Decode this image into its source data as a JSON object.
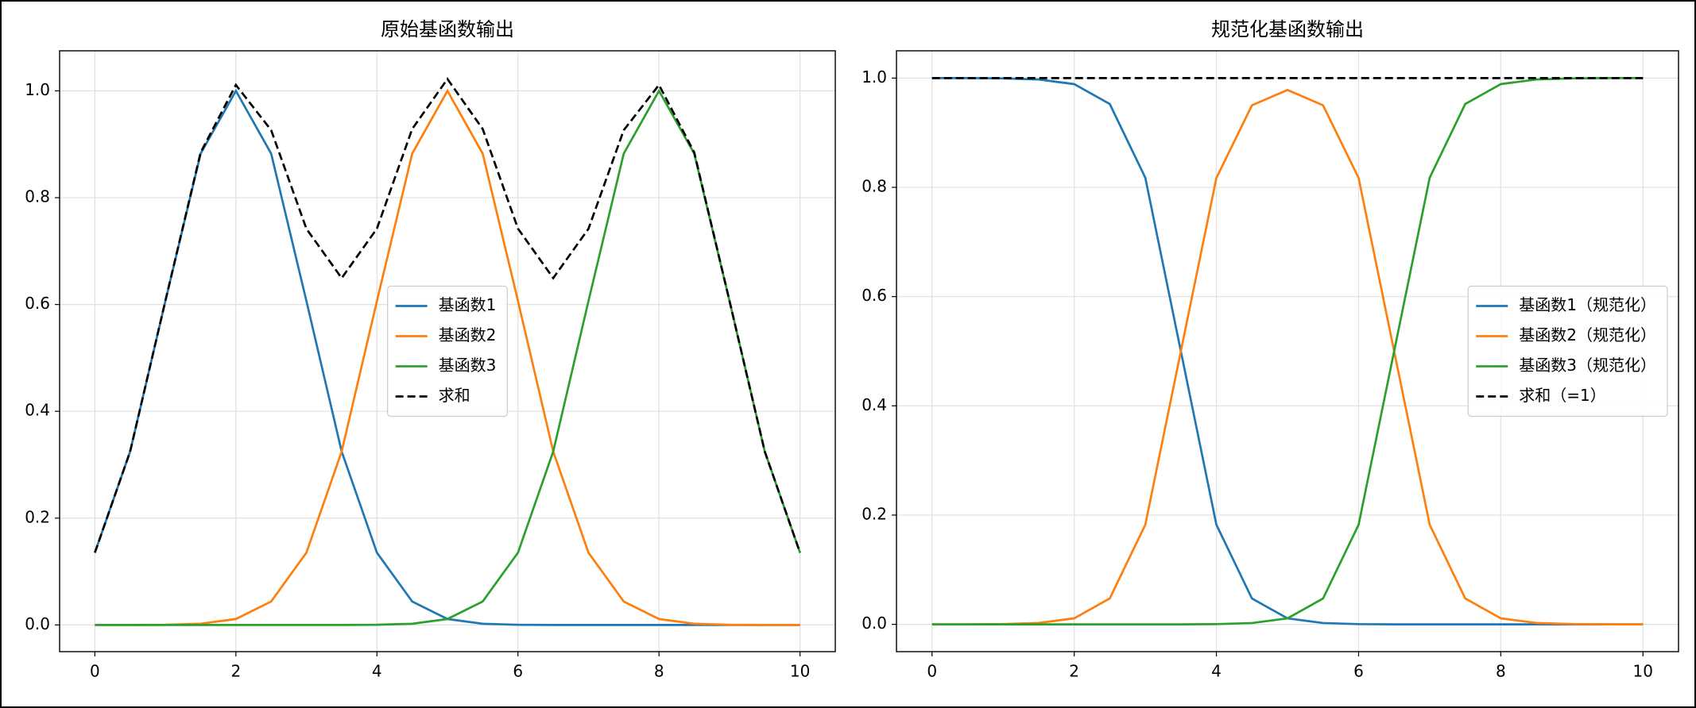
{
  "chart_data": [
    {
      "type": "line",
      "title": "原始基函数输出",
      "x": [
        0,
        0.5,
        1,
        1.5,
        2,
        2.5,
        3,
        3.5,
        4,
        4.5,
        5,
        5.5,
        6,
        6.5,
        7,
        7.5,
        8,
        8.5,
        9,
        9.5,
        10
      ],
      "series": [
        {
          "name": "基函数1",
          "color": "#1f77b4",
          "linestyle": "solid",
          "values": [
            0.1353,
            0.3247,
            0.6065,
            0.8825,
            1,
            0.8825,
            0.6065,
            0.3247,
            0.1353,
            0.0439,
            0.0111,
            0.0022,
            0.0003,
            0,
            0,
            0,
            0,
            0,
            0,
            0,
            0
          ]
        },
        {
          "name": "基函数2",
          "color": "#ff7f0e",
          "linestyle": "solid",
          "values": [
            0,
            0,
            0.0003,
            0.0022,
            0.0111,
            0.0439,
            0.1353,
            0.3247,
            0.6065,
            0.8825,
            1,
            0.8825,
            0.6065,
            0.3247,
            0.1353,
            0.0439,
            0.0111,
            0.0022,
            0.0003,
            0,
            0
          ]
        },
        {
          "name": "基函数3",
          "color": "#2ca02c",
          "linestyle": "solid",
          "values": [
            0,
            0,
            0,
            0,
            0,
            0,
            0,
            0,
            0.0003,
            0.0022,
            0.0111,
            0.0439,
            0.1353,
            0.3247,
            0.6065,
            0.8825,
            1,
            0.8825,
            0.6065,
            0.3247,
            0.1353
          ]
        },
        {
          "name": "求和",
          "color": "#000000",
          "linestyle": "dashed",
          "values": [
            0.1353,
            0.3247,
            0.6068,
            0.8847,
            1.0111,
            0.9264,
            0.7418,
            0.6494,
            0.7421,
            0.9286,
            1.0222,
            0.9286,
            0.7421,
            0.6494,
            0.7418,
            0.9264,
            1.0111,
            0.8847,
            0.6068,
            0.3247,
            0.1353
          ]
        }
      ],
      "xlim": [
        -0.5,
        10.5
      ],
      "ylim": [
        -0.05,
        1.075
      ],
      "xticks": [
        0,
        2,
        4,
        6,
        8,
        10
      ],
      "yticks": [
        {
          "value": 0,
          "label": "0.0"
        },
        {
          "value": 0.2,
          "label": "0.2"
        },
        {
          "value": 0.4,
          "label": "0.4"
        },
        {
          "value": 0.6,
          "label": "0.6"
        },
        {
          "value": 0.8,
          "label": "0.8"
        },
        {
          "value": 1,
          "label": "1.0"
        }
      ],
      "grid": true,
      "legend_loc": "center"
    },
    {
      "type": "line",
      "title": "规范化基函数输出",
      "x": [
        0,
        0.5,
        1,
        1.5,
        2,
        2.5,
        3,
        3.5,
        4,
        4.5,
        5,
        5.5,
        6,
        6.5,
        7,
        7.5,
        8,
        8.5,
        9,
        9.5,
        10
      ],
      "series": [
        {
          "name": "基函数1（规范化）",
          "color": "#1f77b4",
          "linestyle": "solid",
          "values": [
            1,
            1,
            0.9995,
            0.9975,
            0.989,
            0.9526,
            0.8176,
            0.5,
            0.1823,
            0.0473,
            0.0109,
            0.0024,
            0.0004,
            0,
            0,
            0,
            0,
            0,
            0,
            0,
            0
          ]
        },
        {
          "name": "基函数2（规范化）",
          "color": "#ff7f0e",
          "linestyle": "solid",
          "values": [
            0,
            0,
            0.0005,
            0.0025,
            0.011,
            0.0474,
            0.1824,
            0.5,
            0.8173,
            0.9503,
            0.9783,
            0.9503,
            0.8173,
            0.5,
            0.1824,
            0.0474,
            0.011,
            0.0025,
            0.0005,
            0,
            0
          ]
        },
        {
          "name": "基函数3（规范化）",
          "color": "#2ca02c",
          "linestyle": "solid",
          "values": [
            0,
            0,
            0,
            0,
            0,
            0,
            0,
            0,
            0.0004,
            0.0024,
            0.0109,
            0.0473,
            0.1823,
            0.5,
            0.8176,
            0.9526,
            0.989,
            0.9975,
            0.9995,
            1,
            1
          ]
        },
        {
          "name": "求和（=1）",
          "color": "#000000",
          "linestyle": "dashed",
          "values": [
            1,
            1,
            1,
            1,
            1,
            1,
            1,
            1,
            1,
            1,
            1,
            1,
            1,
            1,
            1,
            1,
            1,
            1,
            1,
            1,
            1
          ]
        }
      ],
      "xlim": [
        -0.5,
        10.5
      ],
      "ylim": [
        -0.05,
        1.05
      ],
      "xticks": [
        0,
        2,
        4,
        6,
        8,
        10
      ],
      "yticks": [
        {
          "value": 0,
          "label": "0.0"
        },
        {
          "value": 0.2,
          "label": "0.2"
        },
        {
          "value": 0.4,
          "label": "0.4"
        },
        {
          "value": 0.6,
          "label": "0.6"
        },
        {
          "value": 0.8,
          "label": "0.8"
        },
        {
          "value": 1,
          "label": "1.0"
        }
      ],
      "grid": true,
      "legend_loc": "center right"
    }
  ]
}
